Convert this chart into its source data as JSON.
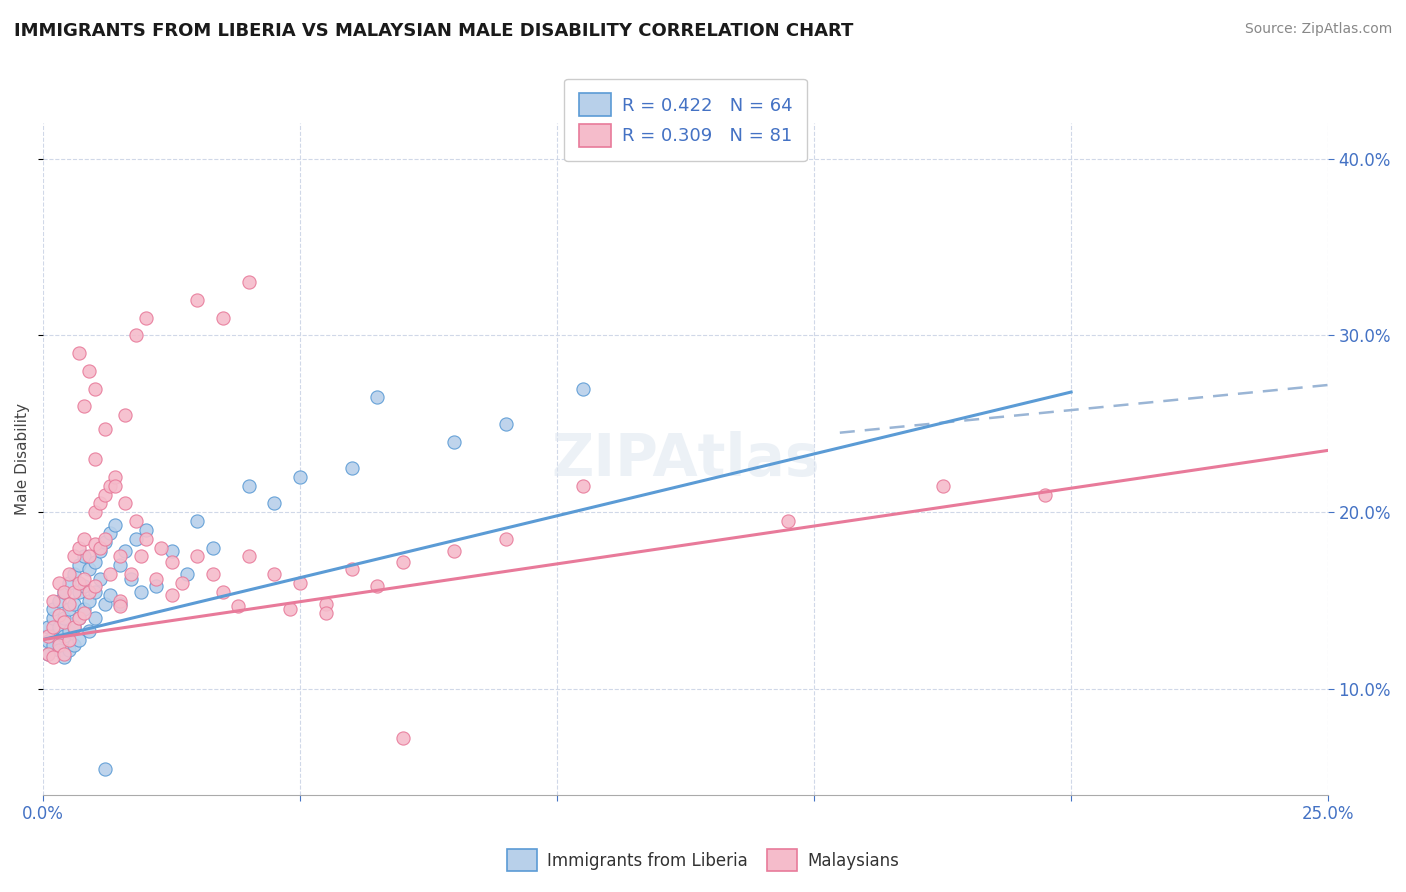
{
  "title": "IMMIGRANTS FROM LIBERIA VS MALAYSIAN MALE DISABILITY CORRELATION CHART",
  "source": "Source: ZipAtlas.com",
  "ylabel": "Male Disability",
  "legend_entry1": "R = 0.422   N = 64",
  "legend_entry2": "R = 0.309   N = 81",
  "legend_label1": "Immigrants from Liberia",
  "legend_label2": "Malaysians",
  "xlim": [
    0.0,
    0.25
  ],
  "ylim": [
    0.04,
    0.42
  ],
  "yticks": [
    0.1,
    0.2,
    0.3,
    0.4
  ],
  "xticks": [
    0.0,
    0.05,
    0.1,
    0.15,
    0.2,
    0.25
  ],
  "color_blue_fill": "#b8d0ea",
  "color_pink_fill": "#f5bccb",
  "color_blue_line": "#5b9bd5",
  "color_pink_line": "#e87a9a",
  "color_legend_text": "#4472c4",
  "color_dashed": "#9ab5d5",
  "color_grid": "#d0d8e8",
  "blue_line_x0": 0.0,
  "blue_line_y0": 0.128,
  "blue_line_x1": 0.2,
  "blue_line_y1": 0.268,
  "pink_line_x0": 0.0,
  "pink_line_y0": 0.128,
  "pink_line_x1": 0.25,
  "pink_line_y1": 0.235,
  "dash_line_x0": 0.155,
  "dash_line_y0": 0.245,
  "dash_line_x1": 0.25,
  "dash_line_y1": 0.272,
  "blue_scatter_x": [
    0.001,
    0.001,
    0.001,
    0.002,
    0.002,
    0.002,
    0.002,
    0.003,
    0.003,
    0.003,
    0.003,
    0.004,
    0.004,
    0.004,
    0.004,
    0.005,
    0.005,
    0.005,
    0.005,
    0.006,
    0.006,
    0.006,
    0.006,
    0.007,
    0.007,
    0.007,
    0.007,
    0.008,
    0.008,
    0.008,
    0.009,
    0.009,
    0.009,
    0.01,
    0.01,
    0.01,
    0.011,
    0.011,
    0.012,
    0.012,
    0.013,
    0.013,
    0.014,
    0.015,
    0.015,
    0.016,
    0.017,
    0.018,
    0.019,
    0.02,
    0.022,
    0.025,
    0.028,
    0.03,
    0.033,
    0.04,
    0.045,
    0.05,
    0.06,
    0.065,
    0.08,
    0.09,
    0.105,
    0.012
  ],
  "blue_scatter_y": [
    0.127,
    0.135,
    0.12,
    0.14,
    0.13,
    0.125,
    0.145,
    0.135,
    0.128,
    0.15,
    0.122,
    0.155,
    0.13,
    0.14,
    0.118,
    0.16,
    0.145,
    0.133,
    0.122,
    0.165,
    0.148,
    0.135,
    0.125,
    0.17,
    0.155,
    0.14,
    0.128,
    0.175,
    0.158,
    0.145,
    0.168,
    0.15,
    0.133,
    0.172,
    0.155,
    0.14,
    0.178,
    0.162,
    0.183,
    0.148,
    0.188,
    0.153,
    0.193,
    0.17,
    0.148,
    0.178,
    0.162,
    0.185,
    0.155,
    0.19,
    0.158,
    0.178,
    0.165,
    0.195,
    0.18,
    0.215,
    0.205,
    0.22,
    0.225,
    0.265,
    0.24,
    0.25,
    0.27,
    0.055
  ],
  "pink_scatter_x": [
    0.001,
    0.001,
    0.002,
    0.002,
    0.002,
    0.003,
    0.003,
    0.003,
    0.004,
    0.004,
    0.004,
    0.005,
    0.005,
    0.005,
    0.006,
    0.006,
    0.006,
    0.007,
    0.007,
    0.007,
    0.008,
    0.008,
    0.008,
    0.009,
    0.009,
    0.01,
    0.01,
    0.01,
    0.011,
    0.011,
    0.012,
    0.012,
    0.013,
    0.013,
    0.014,
    0.015,
    0.015,
    0.016,
    0.017,
    0.018,
    0.019,
    0.02,
    0.022,
    0.023,
    0.025,
    0.027,
    0.03,
    0.033,
    0.035,
    0.04,
    0.045,
    0.048,
    0.05,
    0.055,
    0.06,
    0.065,
    0.07,
    0.08,
    0.09,
    0.01,
    0.012,
    0.014,
    0.016,
    0.018,
    0.02,
    0.007,
    0.008,
    0.009,
    0.01,
    0.03,
    0.035,
    0.04,
    0.105,
    0.145,
    0.175,
    0.195,
    0.015,
    0.025,
    0.038,
    0.055,
    0.07
  ],
  "pink_scatter_y": [
    0.13,
    0.12,
    0.15,
    0.135,
    0.118,
    0.16,
    0.142,
    0.125,
    0.155,
    0.138,
    0.12,
    0.165,
    0.148,
    0.128,
    0.175,
    0.155,
    0.135,
    0.18,
    0.16,
    0.14,
    0.185,
    0.162,
    0.143,
    0.175,
    0.155,
    0.2,
    0.182,
    0.158,
    0.205,
    0.18,
    0.21,
    0.185,
    0.215,
    0.165,
    0.22,
    0.175,
    0.15,
    0.205,
    0.165,
    0.195,
    0.175,
    0.185,
    0.162,
    0.18,
    0.172,
    0.16,
    0.175,
    0.165,
    0.155,
    0.175,
    0.165,
    0.145,
    0.16,
    0.148,
    0.168,
    0.158,
    0.172,
    0.178,
    0.185,
    0.23,
    0.247,
    0.215,
    0.255,
    0.3,
    0.31,
    0.29,
    0.26,
    0.28,
    0.27,
    0.32,
    0.31,
    0.33,
    0.215,
    0.195,
    0.215,
    0.21,
    0.147,
    0.153,
    0.147,
    0.143,
    0.072
  ]
}
